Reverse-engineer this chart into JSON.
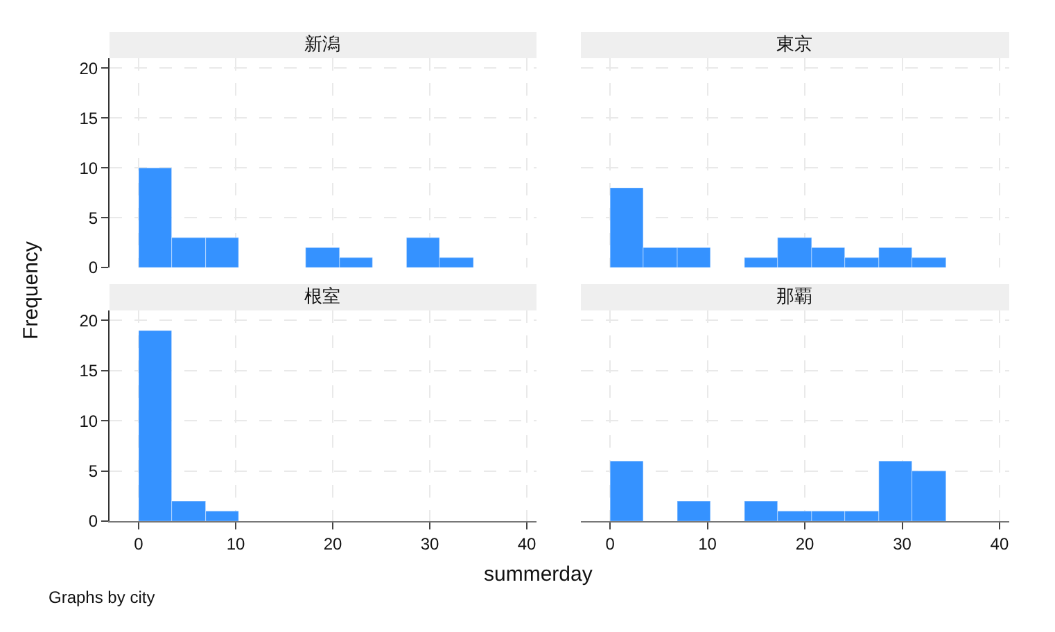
{
  "chart_data": [
    {
      "type": "histogram",
      "title": "新潟",
      "bins": [
        0,
        3.4,
        6.9,
        10.3,
        17.2,
        20.7,
        24.1,
        27.6,
        31,
        34.5
      ],
      "values": [
        10,
        3,
        3,
        0,
        2,
        1,
        0,
        3,
        1
      ],
      "color": "#3592ff",
      "xlim": [
        -3,
        41
      ],
      "xticks": [
        0,
        10,
        20,
        30,
        40
      ],
      "ylim": [
        0,
        21
      ],
      "yticks": [
        0,
        5,
        10,
        15,
        20
      ],
      "grid": true,
      "tick_labels": "y"
    },
    {
      "type": "histogram",
      "title": "東京",
      "bins": [
        0,
        3.4,
        6.9,
        10.3,
        13.8,
        17.2,
        20.7,
        24.1,
        27.6,
        31,
        34.5
      ],
      "values": [
        8,
        2,
        2,
        0,
        1,
        3,
        2,
        1,
        2,
        1
      ],
      "color": "#3592ff",
      "xlim": [
        -3,
        41
      ],
      "xticks": [
        0,
        10,
        20,
        30,
        40
      ],
      "ylim": [
        0,
        21
      ],
      "yticks": [
        0,
        5,
        10,
        15,
        20
      ],
      "grid": true,
      "tick_labels": false
    },
    {
      "type": "histogram",
      "title": "根室",
      "bins": [
        0,
        3.4,
        6.9,
        10.3
      ],
      "values": [
        19,
        2,
        1
      ],
      "color": "#3592ff",
      "xlim": [
        -3,
        41
      ],
      "xticks": [
        0,
        10,
        20,
        30,
        40
      ],
      "ylim": [
        0,
        21
      ],
      "yticks": [
        0,
        5,
        10,
        15,
        20
      ],
      "grid": true,
      "xlabel": "summerday",
      "ylabel": "Frequency",
      "annotations": [
        "Graphs by city"
      ]
    },
    {
      "type": "histogram",
      "title": "那覇",
      "bins": [
        0,
        3.4,
        6.9,
        10.3,
        13.8,
        17.2,
        20.7,
        24.1,
        27.6,
        31,
        34.5
      ],
      "values": [
        6,
        0,
        2,
        0,
        2,
        1,
        1,
        1,
        6,
        5
      ],
      "color": "#3592ff",
      "xlim": [
        -3,
        41
      ],
      "xticks": [
        0,
        10,
        20,
        30,
        40
      ],
      "ylim": [
        0,
        21
      ],
      "yticks": [
        0,
        5,
        10,
        15,
        20
      ],
      "grid": true,
      "tick_labels": "x"
    }
  ]
}
